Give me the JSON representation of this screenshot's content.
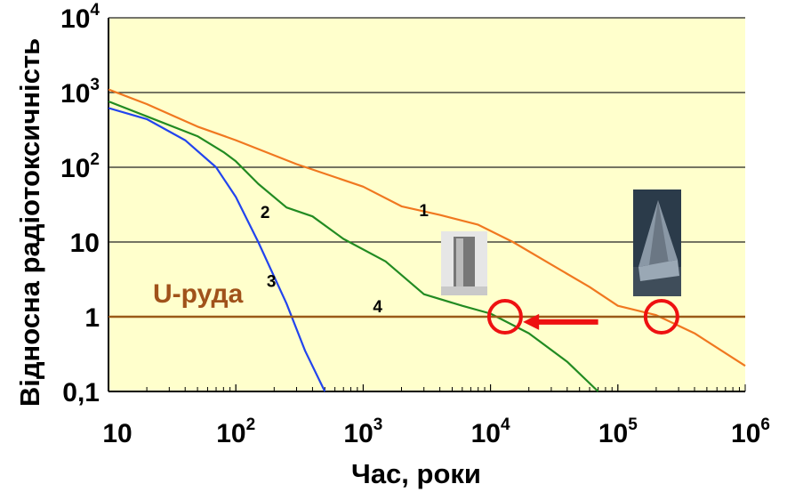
{
  "chart_data": {
    "type": "line",
    "title": "",
    "xlabel": "Час, роки",
    "ylabel": "Відносна радіотоксичність",
    "x_scale": "log",
    "y_scale": "log",
    "xlim": [
      10,
      1000000
    ],
    "ylim": [
      0.1,
      10000
    ],
    "grid": "horizontal",
    "background": "#ffffcc",
    "x_ticks": [
      {
        "value": 10,
        "base": "10",
        "exp": ""
      },
      {
        "value": 100,
        "base": "10",
        "exp": "2"
      },
      {
        "value": 1000,
        "base": "10",
        "exp": "3"
      },
      {
        "value": 10000,
        "base": "10",
        "exp": "4"
      },
      {
        "value": 100000,
        "base": "10",
        "exp": "5"
      },
      {
        "value": 1000000,
        "base": "10",
        "exp": "6"
      }
    ],
    "y_ticks": [
      {
        "value": 10000,
        "base": "10",
        "exp": "4"
      },
      {
        "value": 1000,
        "base": "10",
        "exp": "3"
      },
      {
        "value": 100,
        "base": "10",
        "exp": "2"
      },
      {
        "value": 10,
        "base": "10",
        "exp": ""
      },
      {
        "value": 1,
        "base": "1",
        "exp": ""
      },
      {
        "value": 0.1,
        "base": "0,1",
        "exp": ""
      }
    ],
    "series": [
      {
        "label": "1",
        "color": "#f07820",
        "label_at": [
          3000,
          22
        ],
        "points": [
          [
            10,
            1100
          ],
          [
            20,
            700
          ],
          [
            50,
            350
          ],
          [
            100,
            230
          ],
          [
            300,
            110
          ],
          [
            1000,
            55
          ],
          [
            2000,
            30
          ],
          [
            4000,
            23
          ],
          [
            8000,
            17
          ],
          [
            15000,
            10
          ],
          [
            30000,
            5
          ],
          [
            60000,
            2.5
          ],
          [
            100000,
            1.4
          ],
          [
            200000,
            1.05
          ],
          [
            400000,
            0.6
          ],
          [
            1000000,
            0.22
          ]
        ]
      },
      {
        "label": "2",
        "color": "#228b22",
        "label_at": [
          170,
          21
        ],
        "points": [
          [
            10,
            760
          ],
          [
            20,
            480
          ],
          [
            50,
            260
          ],
          [
            80,
            160
          ],
          [
            100,
            120
          ],
          [
            150,
            60
          ],
          [
            250,
            29
          ],
          [
            400,
            22
          ],
          [
            700,
            11
          ],
          [
            1500,
            5.5
          ],
          [
            3000,
            2
          ],
          [
            6000,
            1.4
          ],
          [
            10000,
            1.1
          ],
          [
            20000,
            0.6
          ],
          [
            40000,
            0.25
          ],
          [
            70000,
            0.1
          ]
        ]
      },
      {
        "label": "3",
        "color": "#2244ee",
        "label_at": [
          190,
          2.5
        ],
        "points": [
          [
            10,
            620
          ],
          [
            20,
            440
          ],
          [
            40,
            230
          ],
          [
            70,
            100
          ],
          [
            100,
            40
          ],
          [
            150,
            10
          ],
          [
            250,
            1.5
          ],
          [
            350,
            0.35
          ],
          [
            500,
            0.1
          ]
        ]
      },
      {
        "label": "4",
        "color": "#9a5a18",
        "label_at": [
          1300,
          1.15
        ],
        "points": [
          [
            10,
            1
          ],
          [
            1000000,
            1
          ]
        ]
      }
    ],
    "ore_label": "U-руда",
    "ore_label_color": "#a0521a",
    "markers": [
      {
        "type": "circle",
        "x": 13000,
        "y": 1,
        "color": "#ee1111"
      },
      {
        "type": "circle",
        "x": 220000,
        "y": 1,
        "color": "#ee1111"
      }
    ],
    "arrow": {
      "from": [
        70000,
        0.85
      ],
      "to": [
        18000,
        0.8
      ],
      "color": "#ee1111"
    }
  }
}
